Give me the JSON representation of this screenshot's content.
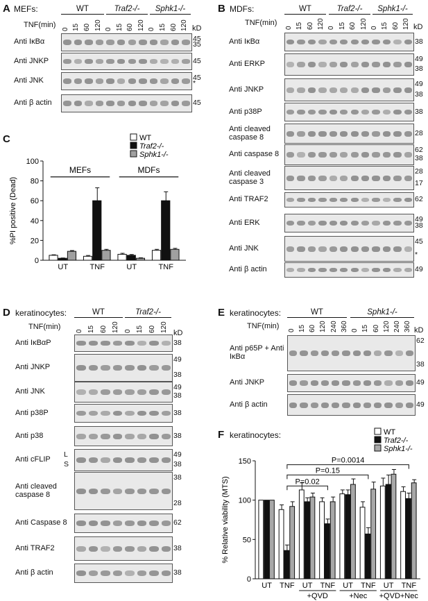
{
  "panels": {
    "A": {
      "letter": "A",
      "title": "MEFs:",
      "groups": [
        "WT",
        "Traf2-/-",
        "Sphk1-/-"
      ],
      "tnf_label": "TNF(min)",
      "timepoints": [
        "0",
        "15",
        "60",
        "120",
        "0",
        "15",
        "60",
        "120",
        "0",
        "15",
        "60",
        "120"
      ],
      "kd_header": "kD",
      "blots": [
        {
          "label": "Anti IκBα",
          "kd": [
            "45",
            "35"
          ]
        },
        {
          "label": "Anti JNKP",
          "kd": [
            "45"
          ]
        },
        {
          "label": "Anti JNK",
          "kd": [
            "45",
            "*"
          ]
        },
        {
          "label": "Anti β actin",
          "kd": [
            "45"
          ]
        }
      ]
    },
    "B": {
      "letter": "B",
      "title": "MDFs:",
      "groups": [
        "WT",
        "Traf2-/-",
        "Sphk1-/-"
      ],
      "tnf_label": "TNF(min)",
      "timepoints": [
        "0",
        "15",
        "60",
        "120",
        "0",
        "15",
        "60",
        "120",
        "0",
        "15",
        "60",
        "120"
      ],
      "kd_header": "kD",
      "blots": [
        {
          "label": "Anti IκBα",
          "kd": [
            "38"
          ]
        },
        {
          "label": "Anti ERKP",
          "kd": [
            "49",
            "38"
          ]
        },
        {
          "label": "Anti JNKP",
          "kd": [
            "49",
            "38"
          ]
        },
        {
          "label": "Anti p38P",
          "kd": [
            "38"
          ]
        },
        {
          "label": "Anti cleaved caspase 8",
          "kd": [
            "28"
          ]
        },
        {
          "label": "Anti caspase 8",
          "kd": [
            "62",
            "38"
          ]
        },
        {
          "label": "Anti cleaved caspase 3",
          "kd": [
            "28",
            "17"
          ]
        },
        {
          "label": "Anti TRAF2",
          "kd": [
            "62"
          ]
        },
        {
          "label": "Anti ERK",
          "kd": [
            "49",
            "38"
          ]
        },
        {
          "label": "Anti JNK",
          "kd": [
            "45",
            "*"
          ]
        },
        {
          "label": "Anti β actin",
          "kd": [
            "49"
          ]
        }
      ]
    },
    "C": {
      "letter": "C",
      "ylabel": "%PI positive (Dead)",
      "group_labels": [
        "MEFs",
        "MDFs"
      ],
      "legend": [
        "WT",
        "Traf2-/-",
        "Sphk1-/-"
      ]
    },
    "D": {
      "letter": "D",
      "title": "keratinocytes:",
      "groups": [
        "WT",
        "Traf2-/-"
      ],
      "tnf_label": "TNF(min)",
      "timepoints": [
        "0",
        "15",
        "60",
        "120",
        "0",
        "15",
        "60",
        "120"
      ],
      "kd_header": "kD",
      "cflip_markers": [
        "L",
        "S"
      ],
      "blots": [
        {
          "label": "Anti IκBαP",
          "kd": [
            "38"
          ]
        },
        {
          "label": "Anti JNKP",
          "kd": [
            "49",
            "38"
          ]
        },
        {
          "label": "Anti JNK",
          "kd": [
            "49",
            "38"
          ]
        },
        {
          "label": "Anti p38P",
          "kd": [
            "38"
          ]
        },
        {
          "label": "Anti p38",
          "kd": [
            "38"
          ]
        },
        {
          "label": "Anti cFLIP",
          "kd": [
            "49",
            "38"
          ]
        },
        {
          "label": "Anti cleaved caspase 8",
          "kd": [
            "38",
            "28"
          ]
        },
        {
          "label": "Anti Caspase 8",
          "kd": [
            "62"
          ]
        },
        {
          "label": "Anti TRAF2",
          "kd": [
            "38"
          ]
        },
        {
          "label": "Anti β actin",
          "kd": [
            "38"
          ]
        }
      ]
    },
    "E": {
      "letter": "E",
      "title": "keratinocytes:",
      "groups": [
        "WT",
        "Sphk1-/-"
      ],
      "tnf_label": "TNF(min)",
      "timepoints": [
        "0",
        "15",
        "60",
        "120",
        "240",
        "360",
        "0",
        "15",
        "60",
        "120",
        "240",
        "360"
      ],
      "kd_header": "kD",
      "blots": [
        {
          "label": "Anti p65P + Anti IκBα",
          "kd": [
            "62",
            "38"
          ]
        },
        {
          "label": "Anti JNKP",
          "kd": [
            "49"
          ]
        },
        {
          "label": "Anti β actin",
          "kd": [
            "49"
          ]
        }
      ]
    },
    "F": {
      "letter": "F",
      "title": "keratinocytes:",
      "ylabel": "% Relative viability (MTS)",
      "legend": [
        "WT",
        "Traf2-/-",
        "Sphk1-/-"
      ],
      "pvalues": [
        "P=0.02",
        "P=0.15",
        "P=0.0014"
      ],
      "subgroup_labels": [
        "+QVD",
        "+Nec",
        "+QVD+Nec"
      ]
    }
  },
  "chart_data": [
    {
      "type": "bar",
      "panel": "C",
      "ylabel": "%PI positive (Dead)",
      "ylim": [
        0,
        100
      ],
      "yticks": [
        0,
        20,
        40,
        60,
        80,
        100
      ],
      "categories": [
        "UT",
        "TNF",
        "UT",
        "TNF"
      ],
      "category_groups": [
        "MEFs",
        "MEFs",
        "MDFs",
        "MDFs"
      ],
      "series": [
        {
          "name": "WT",
          "color": "#ffffff",
          "values": [
            5,
            4,
            6,
            10
          ],
          "errors": [
            0.5,
            0.8,
            1.0,
            1.0
          ]
        },
        {
          "name": "Traf2-/-",
          "color": "#111111",
          "values": [
            2,
            60,
            5,
            60
          ],
          "errors": [
            0.3,
            13,
            0.8,
            9
          ]
        },
        {
          "name": "Sphk1-/-",
          "color": "#a0a0a0",
          "values": [
            9,
            10,
            2,
            11
          ],
          "errors": [
            0.8,
            1.0,
            0.5,
            1.0
          ]
        }
      ]
    },
    {
      "type": "bar",
      "panel": "F",
      "ylabel": "% Relative viability (MTS)",
      "ylim": [
        0,
        150
      ],
      "yticks": [
        0,
        50,
        100,
        150
      ],
      "categories": [
        "UT",
        "TNF",
        "UT",
        "TNF",
        "UT",
        "TNF",
        "UT",
        "TNF"
      ],
      "category_groups": [
        "",
        "",
        "+QVD",
        "+QVD",
        "+Nec",
        "+Nec",
        "+QVD+Nec",
        "+QVD+Nec"
      ],
      "series": [
        {
          "name": "WT",
          "color": "#ffffff",
          "values": [
            100,
            88,
            113,
            98,
            108,
            91,
            118,
            111
          ],
          "errors": [
            0,
            6,
            9,
            5,
            5,
            7,
            10,
            6
          ]
        },
        {
          "name": "Traf2-/-",
          "color": "#111111",
          "values": [
            100,
            36,
            98,
            70,
            107,
            57,
            120,
            102
          ],
          "errors": [
            0,
            7,
            5,
            6,
            6,
            8,
            12,
            7
          ]
        },
        {
          "name": "Sphk1-/-",
          "color": "#a8a8a8",
          "values": [
            100,
            92,
            104,
            98,
            120,
            114,
            133,
            122
          ],
          "errors": [
            0,
            6,
            5,
            6,
            7,
            9,
            6,
            4
          ]
        }
      ],
      "comparisons": [
        {
          "label": "P=0.02",
          "from": 1,
          "to": 3
        },
        {
          "label": "P=0.15",
          "from": 1,
          "to": 5
        },
        {
          "label": "P=0.0014",
          "from": 1,
          "to": 7
        }
      ]
    }
  ]
}
